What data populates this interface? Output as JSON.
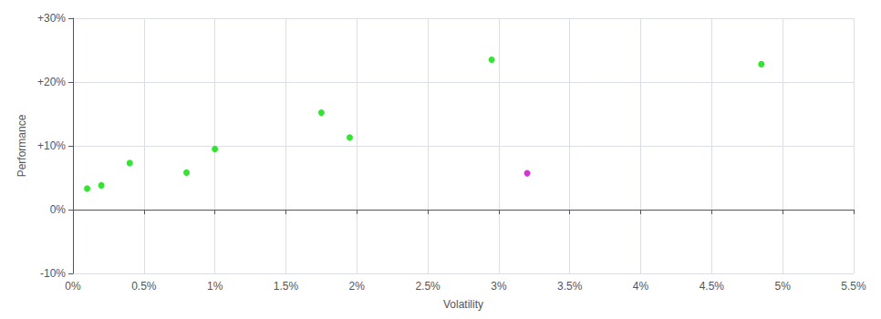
{
  "chart_data": {
    "type": "scatter",
    "xlabel": "Volatility",
    "ylabel": "Performance",
    "series": [
      {
        "color": "#00dd00",
        "x": [
          0.001,
          0.002,
          0.004,
          0.008,
          0.01,
          0.0175,
          0.0195,
          0.0295,
          0.0485
        ],
        "values": [
          0.033,
          0.038,
          0.073,
          0.058,
          0.095,
          0.152,
          0.113,
          0.235,
          0.228
        ]
      },
      {
        "color": "#cc00cc",
        "x": [
          0.032
        ],
        "values": [
          0.057
        ]
      }
    ],
    "xlim": [
      0.0,
      0.055
    ],
    "ylim": [
      -0.1,
      0.3
    ],
    "xticks": [
      {
        "value": 0.0,
        "label": "0%"
      },
      {
        "value": 0.005,
        "label": "0.5%"
      },
      {
        "value": 0.01,
        "label": "1%"
      },
      {
        "value": 0.015,
        "label": "1.5%"
      },
      {
        "value": 0.02,
        "label": "2%"
      },
      {
        "value": 0.025,
        "label": "2.5%"
      },
      {
        "value": 0.03,
        "label": "3%"
      },
      {
        "value": 0.035,
        "label": "3.5%"
      },
      {
        "value": 0.04,
        "label": "4%"
      },
      {
        "value": 0.045,
        "label": "4.5%"
      },
      {
        "value": 0.05,
        "label": "5%"
      },
      {
        "value": 0.055,
        "label": "5.5%"
      }
    ],
    "yticks": [
      {
        "value": -0.1,
        "label": "-10%"
      },
      {
        "value": 0.0,
        "label": "0%"
      },
      {
        "value": 0.1,
        "label": "+10%"
      },
      {
        "value": 0.2,
        "label": "+20%"
      },
      {
        "value": 0.3,
        "label": "+30%"
      }
    ],
    "grid": true
  }
}
